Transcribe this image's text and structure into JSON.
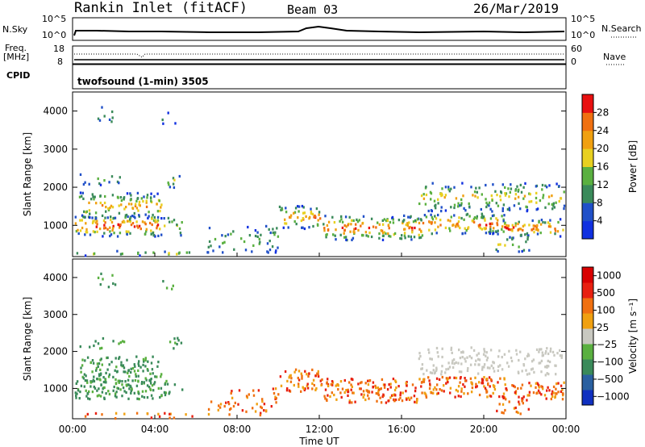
{
  "header": {
    "station": "Rankin Inlet (fitACF)",
    "beam": "Beam 03",
    "date": "26/Mar/2019"
  },
  "top_panel": {
    "left_label": "N.Sky",
    "right_label": "N.Search",
    "left_ticks": [
      "10^5",
      "10^0"
    ],
    "right_ticks": [
      "10^5",
      "10^0"
    ]
  },
  "freq_panel": {
    "left_label_1": "Freq.",
    "left_label_2": "[MHz]",
    "right_label": "Nave",
    "left_ticks": [
      "18",
      "8"
    ],
    "right_ticks": [
      "60",
      "0"
    ]
  },
  "cpid": {
    "label": "CPID",
    "mode": "twofsound (1-min) 3505"
  },
  "chart_data": [
    {
      "type": "heatmap",
      "title": "",
      "ylabel": "Slant Range [km]",
      "xlabel": "",
      "x_ticks": [
        "00:00",
        "04:00",
        "08:00",
        "12:00",
        "16:00",
        "20:00",
        "00:00"
      ],
      "y_ticks": [
        1000,
        2000,
        3000,
        4000
      ],
      "ylim": [
        180,
        4500
      ],
      "colorbar": {
        "label": "Power [dB]",
        "ticks": [
          4,
          8,
          12,
          16,
          20,
          24,
          28
        ],
        "colors": [
          "#1030e0",
          "#2050c8",
          "#3a8a5a",
          "#5ab040",
          "#e8d020",
          "#f0a010",
          "#f07010",
          "#e81010"
        ]
      }
    },
    {
      "type": "heatmap",
      "title": "",
      "ylabel": "Slant Range [km]",
      "xlabel": "Time UT",
      "x_ticks": [
        "00:00",
        "04:00",
        "08:00",
        "12:00",
        "16:00",
        "20:00",
        "00:00"
      ],
      "y_ticks": [
        1000,
        2000,
        3000,
        4000
      ],
      "ylim": [
        180,
        4500
      ],
      "colorbar": {
        "label": "Velocity [m s⁻¹]",
        "ticks": [
          "1000",
          "500",
          "100",
          "25",
          "−25",
          "−100",
          "−500",
          "−1000"
        ],
        "colors": [
          "#1030c0",
          "#2a60a0",
          "#3a8a5a",
          "#5ab040",
          "#c8c8c0",
          "#f0a010",
          "#f07010",
          "#e82010",
          "#d80000"
        ]
      }
    }
  ]
}
